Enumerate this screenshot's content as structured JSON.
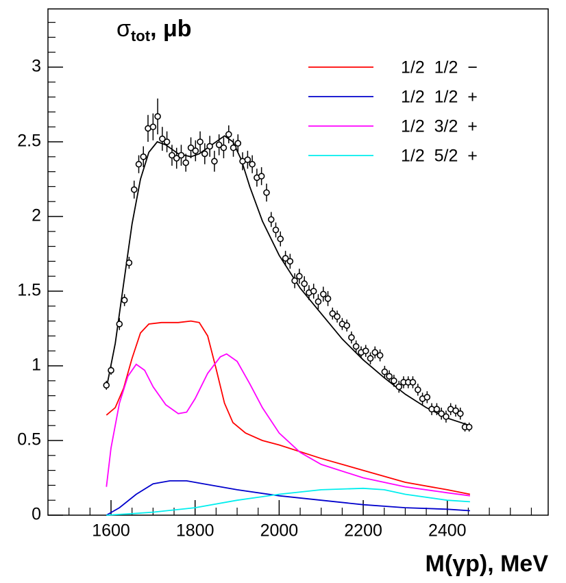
{
  "chart_data": {
    "type": "line",
    "y_label": {
      "symbol": "σ",
      "subscript": "tot",
      "unit": ", μb"
    },
    "x_label": "M(γp), MeV",
    "xlim": [
      1450,
      2640
    ],
    "ylim": [
      0,
      3.39
    ],
    "xticks": [
      1600,
      1800,
      2000,
      2200,
      2400
    ],
    "yticks": [
      0,
      0.5,
      1,
      1.5,
      2,
      2.5,
      3
    ],
    "x_minor_ticks": [
      1500,
      1550,
      1650,
      1700,
      1750,
      1850,
      1900,
      1950,
      2050,
      2100,
      2150,
      2250,
      2300,
      2350,
      2450,
      2500,
      2550,
      2600
    ],
    "y_minor_ticks": [
      0.1,
      0.2,
      0.3,
      0.4,
      0.6,
      0.7,
      0.8,
      0.9,
      1.1,
      1.2,
      1.3,
      1.4,
      1.6,
      1.7,
      1.8,
      1.9,
      2.1,
      2.2,
      2.3,
      2.4,
      2.6,
      2.7,
      2.8,
      2.9,
      3.1,
      3.2,
      3.3
    ],
    "data_points": {
      "color": "#000000",
      "x": [
        1589,
        1600,
        1620,
        1632,
        1643,
        1655,
        1666,
        1677,
        1688,
        1700,
        1711,
        1722,
        1733,
        1745,
        1756,
        1767,
        1778,
        1790,
        1801,
        1812,
        1823,
        1835,
        1846,
        1857,
        1868,
        1880,
        1891,
        1902,
        1913,
        1925,
        1936,
        1947,
        1958,
        1970,
        1981,
        1992,
        2003,
        2015,
        2026,
        2037,
        2048,
        2060,
        2071,
        2082,
        2093,
        2105,
        2116,
        2127,
        2138,
        2150,
        2161,
        2172,
        2183,
        2195,
        2206,
        2217,
        2228,
        2240,
        2251,
        2262,
        2273,
        2285,
        2296,
        2307,
        2318,
        2330,
        2341,
        2352,
        2363,
        2375,
        2386,
        2397,
        2408,
        2420,
        2431,
        2442,
        2452
      ],
      "values": [
        0.87,
        0.97,
        1.28,
        1.44,
        1.69,
        2.18,
        2.35,
        2.4,
        2.59,
        2.6,
        2.67,
        2.52,
        2.5,
        2.41,
        2.39,
        2.41,
        2.36,
        2.46,
        2.44,
        2.5,
        2.42,
        2.47,
        2.37,
        2.48,
        2.46,
        2.55,
        2.46,
        2.49,
        2.37,
        2.38,
        2.35,
        2.26,
        2.27,
        2.16,
        1.98,
        1.91,
        1.85,
        1.72,
        1.7,
        1.57,
        1.6,
        1.55,
        1.49,
        1.5,
        1.43,
        1.48,
        1.45,
        1.35,
        1.33,
        1.28,
        1.27,
        1.19,
        1.13,
        1.09,
        1.1,
        1.05,
        1.09,
        1.07,
        0.96,
        0.93,
        0.9,
        0.86,
        0.89,
        0.89,
        0.89,
        0.84,
        0.78,
        0.79,
        0.71,
        0.71,
        0.68,
        0.66,
        0.71,
        0.7,
        0.68,
        0.59,
        0.59
      ],
      "errors": [
        0.03,
        0.03,
        0.04,
        0.04,
        0.04,
        0.06,
        0.06,
        0.07,
        0.09,
        0.09,
        0.12,
        0.08,
        0.07,
        0.07,
        0.07,
        0.07,
        0.06,
        0.07,
        0.07,
        0.07,
        0.07,
        0.07,
        0.07,
        0.07,
        0.07,
        0.06,
        0.06,
        0.06,
        0.06,
        0.06,
        0.06,
        0.06,
        0.06,
        0.06,
        0.05,
        0.05,
        0.05,
        0.05,
        0.05,
        0.05,
        0.05,
        0.05,
        0.05,
        0.05,
        0.05,
        0.05,
        0.05,
        0.04,
        0.04,
        0.04,
        0.04,
        0.04,
        0.04,
        0.04,
        0.04,
        0.04,
        0.04,
        0.04,
        0.04,
        0.04,
        0.04,
        0.04,
        0.04,
        0.04,
        0.04,
        0.04,
        0.04,
        0.04,
        0.04,
        0.04,
        0.04,
        0.04,
        0.04,
        0.04,
        0.04,
        0.03,
        0.03
      ]
    },
    "fit": {
      "color": "#000000",
      "x": [
        1589,
        1610,
        1630,
        1650,
        1670,
        1690,
        1710,
        1730,
        1760,
        1790,
        1810,
        1840,
        1870,
        1890,
        1910,
        1930,
        1960,
        2000,
        2050,
        2100,
        2150,
        2200,
        2250,
        2300,
        2350,
        2400,
        2454
      ],
      "values": [
        0.85,
        1.15,
        1.55,
        1.95,
        2.25,
        2.43,
        2.5,
        2.48,
        2.42,
        2.4,
        2.42,
        2.48,
        2.54,
        2.5,
        2.38,
        2.2,
        1.97,
        1.74,
        1.52,
        1.35,
        1.18,
        1.04,
        0.92,
        0.81,
        0.72,
        0.65,
        0.6
      ]
    },
    "series": [
      {
        "name": "1/2  1/2  −",
        "color": "#ff0000",
        "x": [
          1589,
          1610,
          1630,
          1650,
          1670,
          1690,
          1720,
          1760,
          1790,
          1810,
          1830,
          1850,
          1870,
          1890,
          1920,
          1960,
          2000,
          2100,
          2200,
          2300,
          2400,
          2454
        ],
        "values": [
          0.67,
          0.72,
          0.85,
          1.05,
          1.22,
          1.28,
          1.29,
          1.29,
          1.3,
          1.29,
          1.2,
          0.98,
          0.75,
          0.62,
          0.55,
          0.5,
          0.47,
          0.38,
          0.3,
          0.22,
          0.17,
          0.14
        ]
      },
      {
        "name": "1/2  1/2  +",
        "color": "#0000cc",
        "x": [
          1589,
          1620,
          1660,
          1700,
          1740,
          1780,
          1820,
          1900,
          2000,
          2100,
          2200,
          2300,
          2400,
          2454
        ],
        "values": [
          0.0,
          0.05,
          0.14,
          0.21,
          0.23,
          0.23,
          0.21,
          0.17,
          0.13,
          0.1,
          0.07,
          0.05,
          0.04,
          0.03
        ]
      },
      {
        "name": "1/2  3/2  +",
        "color": "#ff00ff",
        "x": [
          1589,
          1600,
          1620,
          1640,
          1660,
          1680,
          1700,
          1730,
          1760,
          1780,
          1800,
          1830,
          1860,
          1875,
          1900,
          1930,
          1960,
          2000,
          2050,
          2100,
          2200,
          2300,
          2400,
          2454
        ],
        "values": [
          0.19,
          0.45,
          0.75,
          0.93,
          1.01,
          0.97,
          0.86,
          0.74,
          0.68,
          0.69,
          0.78,
          0.95,
          1.06,
          1.08,
          1.03,
          0.88,
          0.72,
          0.55,
          0.42,
          0.34,
          0.25,
          0.19,
          0.15,
          0.13
        ]
      },
      {
        "name": "1/2  5/2  +",
        "color": "#00eeee",
        "x": [
          1589,
          1650,
          1700,
          1800,
          1900,
          2000,
          2100,
          2200,
          2250,
          2300,
          2400,
          2454
        ],
        "values": [
          0.0,
          0.01,
          0.02,
          0.05,
          0.1,
          0.14,
          0.17,
          0.18,
          0.17,
          0.14,
          0.1,
          0.09
        ]
      }
    ]
  }
}
